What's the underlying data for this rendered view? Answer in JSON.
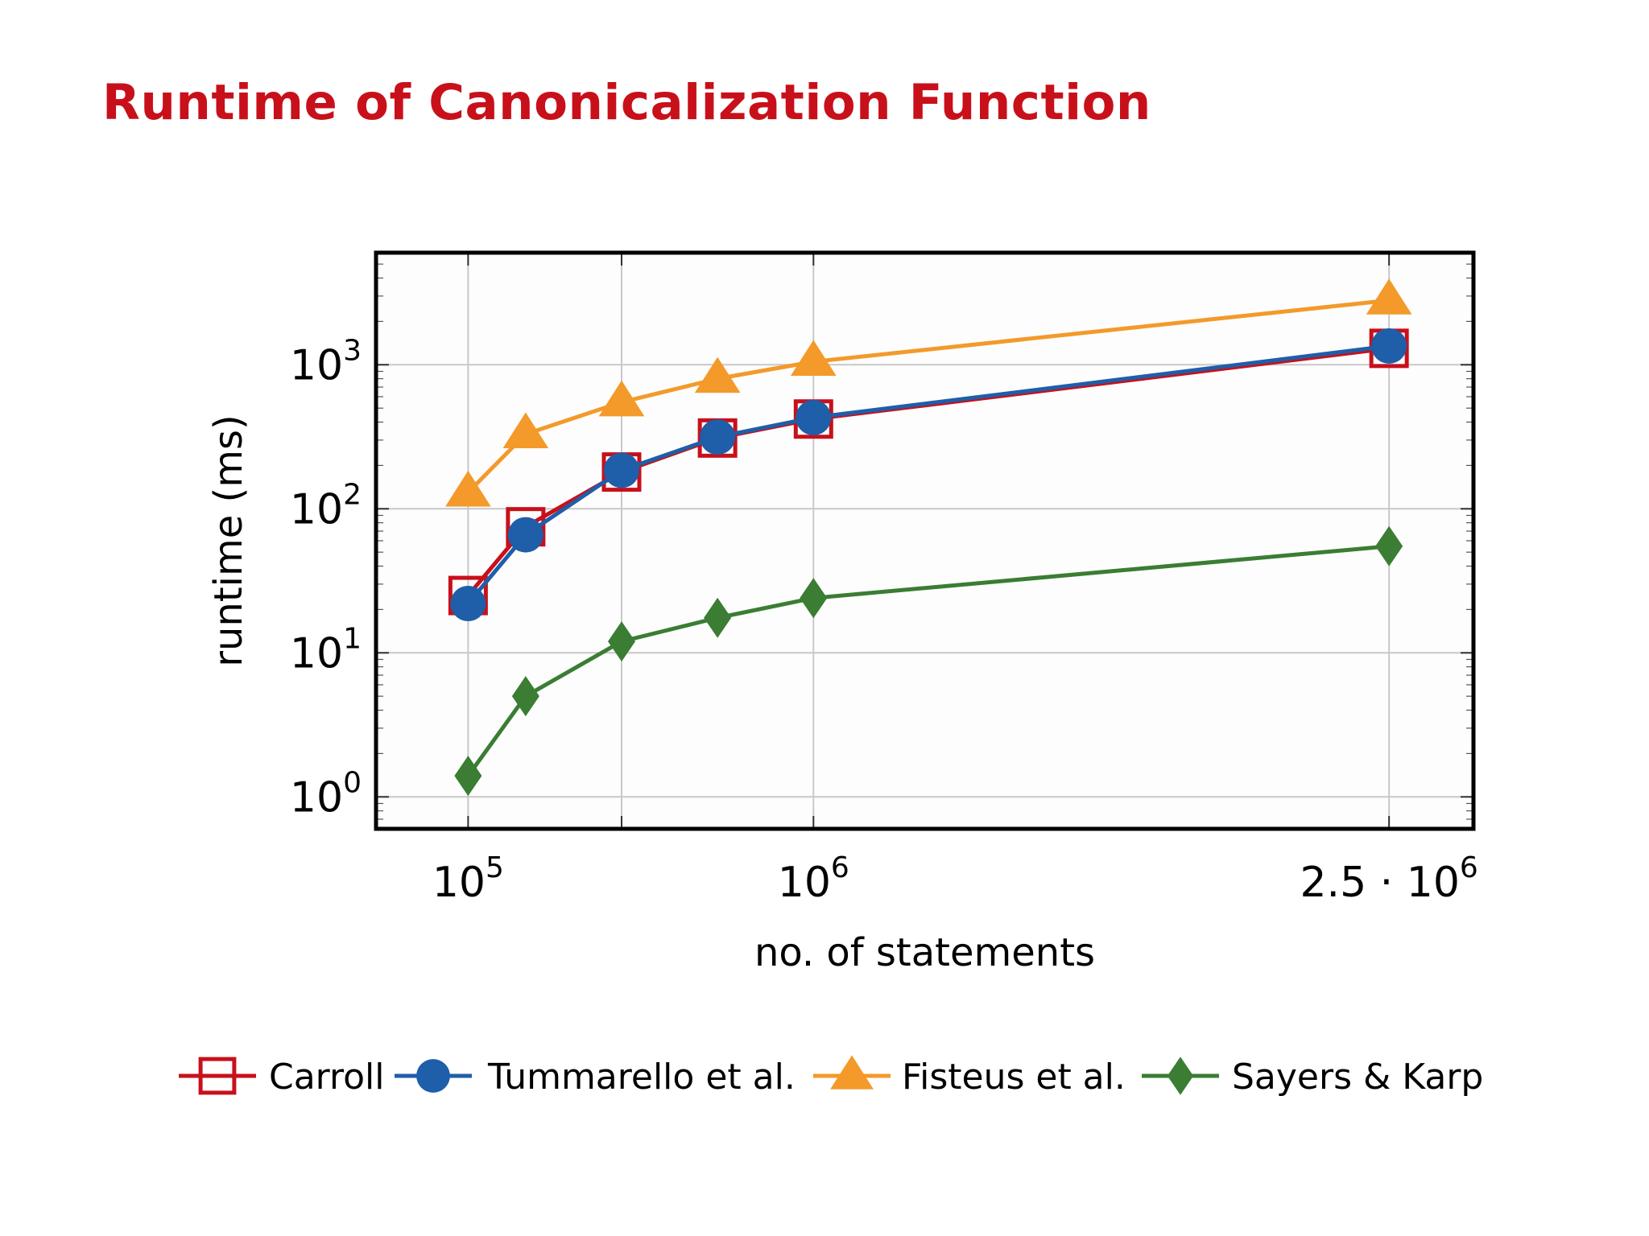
{
  "slide": {
    "title": "Runtime of Canonicalization Function"
  },
  "chart_data": {
    "type": "line",
    "title": "",
    "xlabel": "no. of statements",
    "ylabel": "runtime (ms)",
    "xscale": "linear",
    "yscale": "log",
    "xlim": [
      -140000,
      2720000
    ],
    "ylim": [
      0.6,
      6000
    ],
    "grid": true,
    "legend_position": "bottom",
    "x": [
      100000,
      250000,
      500000,
      750000,
      1000000,
      2500000
    ],
    "x_ticks": [
      {
        "value": 100000,
        "mantissa": "",
        "base": "10",
        "exponent": "5"
      },
      {
        "value": 1000000,
        "mantissa": "",
        "base": "10",
        "exponent": "6"
      },
      {
        "value": 2500000,
        "mantissa": "2.5 · ",
        "base": "10",
        "exponent": "6"
      }
    ],
    "x_gridlines": [
      100000,
      500000,
      1000000,
      2500000
    ],
    "y_ticks": [
      {
        "value": 1,
        "base": "10",
        "exponent": "0"
      },
      {
        "value": 10,
        "base": "10",
        "exponent": "1"
      },
      {
        "value": 100,
        "base": "10",
        "exponent": "2"
      },
      {
        "value": 1000,
        "base": "10",
        "exponent": "3"
      }
    ],
    "series": [
      {
        "name": "Carroll",
        "marker": "square-open",
        "color": "#c8101b",
        "values": [
          25,
          75,
          180,
          310,
          420,
          1300
        ]
      },
      {
        "name": "Tummarello et al.",
        "marker": "circle",
        "color": "#1f5ea8",
        "values": [
          22,
          66,
          185,
          315,
          430,
          1350
        ]
      },
      {
        "name": "Fisteus et al.",
        "marker": "triangle",
        "color": "#f39a2b",
        "values": [
          130,
          330,
          550,
          800,
          1050,
          2800
        ]
      },
      {
        "name": "Sayers & Karp",
        "marker": "diamond",
        "color": "#3a7d33",
        "values": [
          1.4,
          5,
          12,
          17.5,
          24,
          55
        ]
      }
    ]
  }
}
